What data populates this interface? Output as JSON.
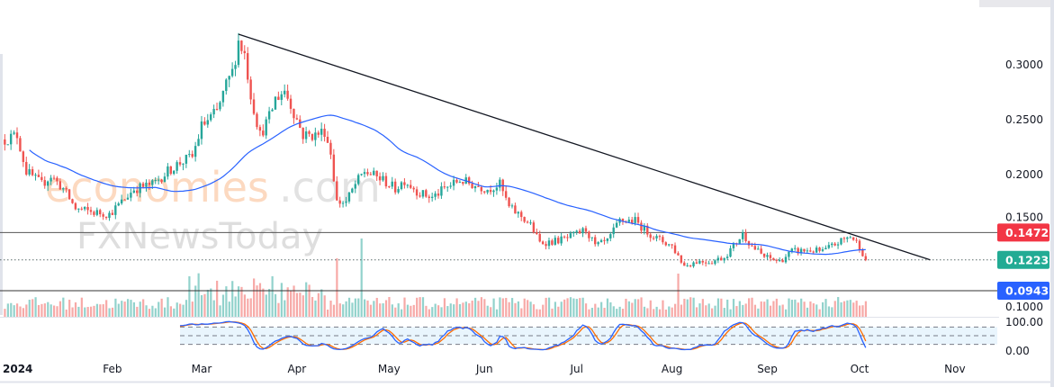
{
  "chart_data": {
    "type": "candlestick",
    "title": "",
    "x_unit": "days since 2024-01-01",
    "y_range": [
      0.085,
      0.335
    ],
    "y_ticks": [
      "0.3000",
      "0.2500",
      "0.2000",
      "0.1500",
      "0.1000"
    ],
    "y_tick_values": [
      0.3,
      0.25,
      0.2,
      0.15,
      0.1
    ],
    "x_tick_labels": [
      "2024",
      "Feb",
      "Mar",
      "Apr",
      "May",
      "Jun",
      "Jul",
      "Aug",
      "Sep",
      "Oct",
      "Nov"
    ],
    "x_tick_days": [
      0,
      31,
      60,
      91,
      121,
      152,
      182,
      213,
      244,
      274,
      305
    ],
    "close_anchors": [
      [
        -4,
        0.232
      ],
      [
        0,
        0.236
      ],
      [
        3,
        0.203
      ],
      [
        8,
        0.191
      ],
      [
        11,
        0.199
      ],
      [
        15,
        0.187
      ],
      [
        19,
        0.169
      ],
      [
        24,
        0.166
      ],
      [
        30,
        0.164
      ],
      [
        34,
        0.175
      ],
      [
        38,
        0.187
      ],
      [
        44,
        0.191
      ],
      [
        49,
        0.203
      ],
      [
        53,
        0.211
      ],
      [
        57,
        0.216
      ],
      [
        60,
        0.244
      ],
      [
        65,
        0.257
      ],
      [
        68,
        0.281
      ],
      [
        70,
        0.293
      ],
      [
        72,
        0.322
      ],
      [
        74,
        0.31
      ],
      [
        76,
        0.273
      ],
      [
        79,
        0.236
      ],
      [
        82,
        0.252
      ],
      [
        84,
        0.269
      ],
      [
        87,
        0.277
      ],
      [
        90,
        0.257
      ],
      [
        93,
        0.236
      ],
      [
        97,
        0.236
      ],
      [
        100,
        0.24
      ],
      [
        102,
        0.22
      ],
      [
        104,
        0.175
      ],
      [
        107,
        0.175
      ],
      [
        110,
        0.191
      ],
      [
        113,
        0.203
      ],
      [
        116,
        0.199
      ],
      [
        119,
        0.195
      ],
      [
        123,
        0.187
      ],
      [
        126,
        0.195
      ],
      [
        131,
        0.183
      ],
      [
        135,
        0.179
      ],
      [
        139,
        0.187
      ],
      [
        144,
        0.195
      ],
      [
        148,
        0.191
      ],
      [
        153,
        0.187
      ],
      [
        157,
        0.191
      ],
      [
        160,
        0.17
      ],
      [
        164,
        0.162
      ],
      [
        167,
        0.154
      ],
      [
        170,
        0.138
      ],
      [
        174,
        0.139
      ],
      [
        179,
        0.142
      ],
      [
        185,
        0.15
      ],
      [
        188,
        0.135
      ],
      [
        192,
        0.139
      ],
      [
        196,
        0.158
      ],
      [
        201,
        0.158
      ],
      [
        204,
        0.15
      ],
      [
        208,
        0.142
      ],
      [
        213,
        0.135
      ],
      [
        217,
        0.117
      ],
      [
        221,
        0.121
      ],
      [
        226,
        0.121
      ],
      [
        230,
        0.125
      ],
      [
        233,
        0.135
      ],
      [
        236,
        0.146
      ],
      [
        239,
        0.135
      ],
      [
        243,
        0.125
      ],
      [
        248,
        0.121
      ],
      [
        252,
        0.13
      ],
      [
        258,
        0.131
      ],
      [
        262,
        0.13
      ],
      [
        267,
        0.138
      ],
      [
        271,
        0.144
      ],
      [
        274,
        0.135
      ],
      [
        276,
        0.1223
      ]
    ],
    "moving_average_period": 50,
    "stochastic": {
      "k": 14,
      "smooth": 3,
      "d": 3,
      "levels": [
        80,
        50,
        20
      ],
      "axis_labels": [
        "100.00",
        "0.00"
      ]
    },
    "trendline": {
      "from": [
        72,
        0.3279
      ],
      "to": [
        297,
        0.1223
      ]
    },
    "levels": [
      {
        "label": "0.1472",
        "value": 0.1472,
        "color": "#f23645",
        "style": "solid"
      },
      {
        "label": "0.1223",
        "value": 0.1223,
        "color": "#22ab94",
        "style": "dotted"
      },
      {
        "label": "0.0943",
        "value": 0.0943,
        "color": "#2962ff",
        "style": "solid"
      }
    ],
    "volume_spike_days": [
      104,
      112,
      215
    ]
  },
  "colors": {
    "up": "#26a69a",
    "down": "#ef5350",
    "ma": "#2962ff",
    "k": "#2962ff",
    "d": "#ff6d00"
  },
  "watermark": {
    "brand1": "economies",
    "brand1_suffix": ".com",
    "brand2": "FXNewsToday"
  }
}
